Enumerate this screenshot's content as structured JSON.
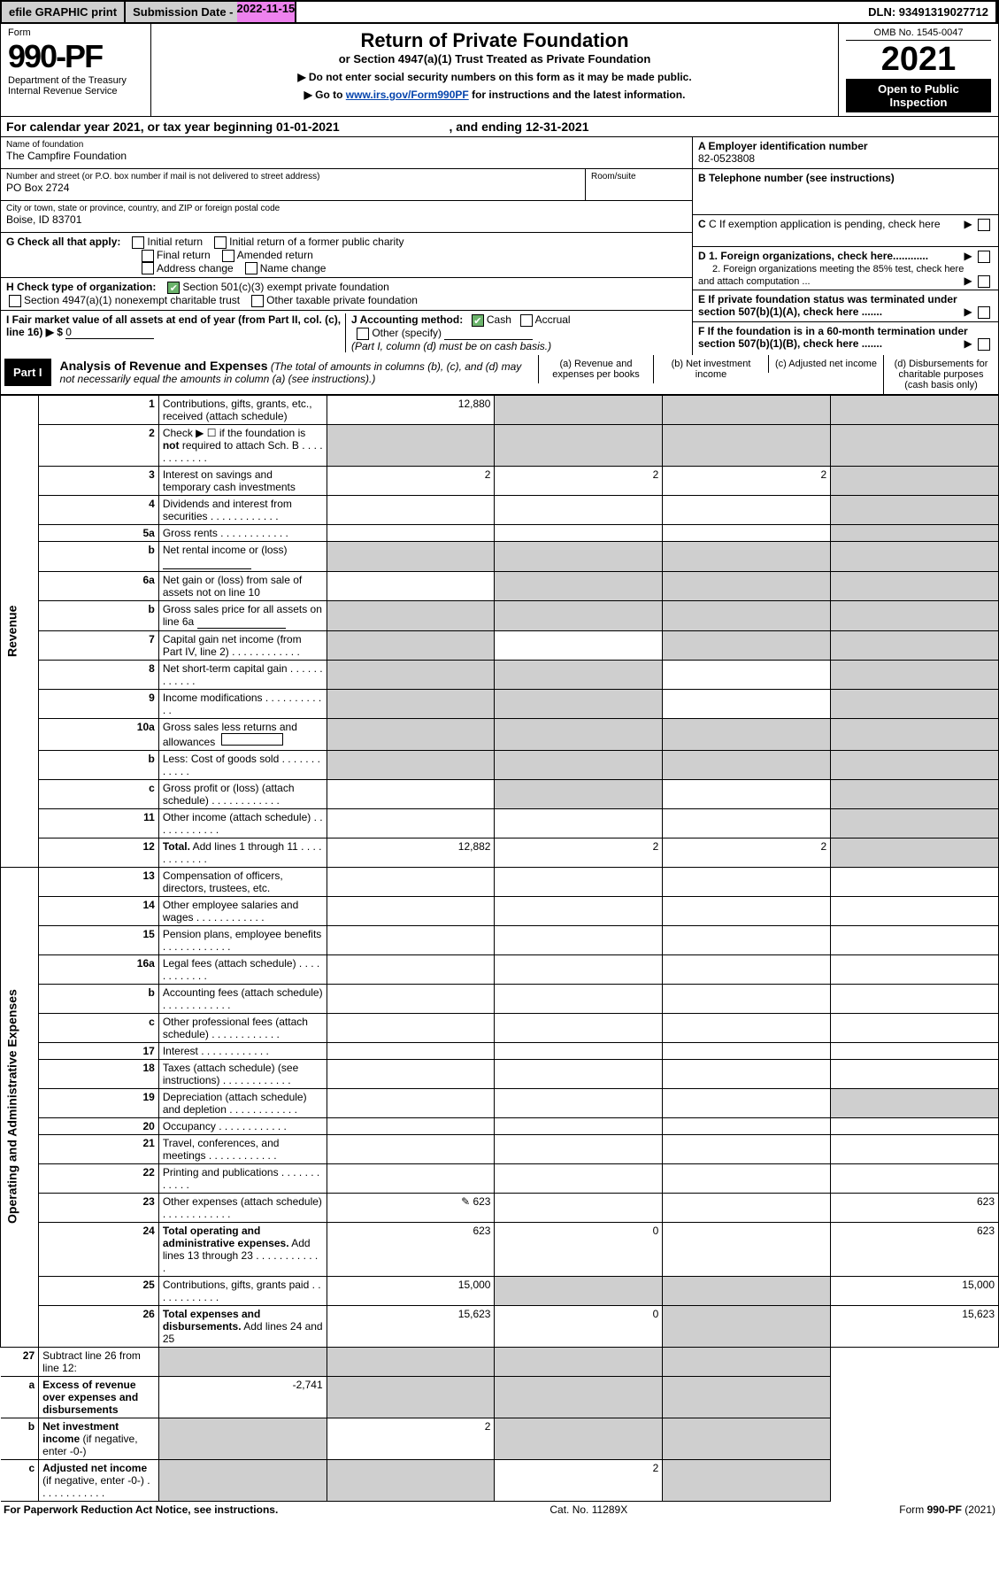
{
  "topbar": {
    "efile": "efile GRAPHIC print",
    "sub": "Submission Date - ",
    "date": "2022-11-15",
    "dln": "DLN: 93491319027712"
  },
  "header": {
    "form": "Form",
    "formno": "990-PF",
    "dept": "Department of the Treasury",
    "irs": "Internal Revenue Service",
    "title": "Return of Private Foundation",
    "subtitle": "or Section 4947(a)(1) Trust Treated as Private Foundation",
    "inst1": "▶ Do not enter social security numbers on this form as it may be made public.",
    "inst2a": "▶ Go to ",
    "inst2link": "www.irs.gov/Form990PF",
    "inst2b": " for instructions and the latest information.",
    "omb": "OMB No. 1545-0047",
    "year": "2021",
    "open": "Open to Public Inspection"
  },
  "cal": {
    "pre": "For calendar year 2021, or tax year beginning ",
    "d1": "01-01-2021",
    "mid": " , and ending ",
    "d2": "12-31-2021"
  },
  "id": {
    "nameLbl": "Name of foundation",
    "name": "The Campfire Foundation",
    "addrLbl": "Number and street (or P.O. box number if mail is not delivered to street address)",
    "addr": "PO Box 2724",
    "roomLbl": "Room/suite",
    "cityLbl": "City or town, state or province, country, and ZIP or foreign postal code",
    "city": "Boise, ID  83701",
    "aLbl": "A Employer identification number",
    "ein": "82-0523808",
    "bLbl": "B Telephone number (see instructions)",
    "cLbl": "C If exemption application is pending, check here",
    "gLbl": "G Check all that apply:",
    "g1": "Initial return",
    "g2": "Initial return of a former public charity",
    "g3": "Final return",
    "g4": "Amended return",
    "g5": "Address change",
    "g6": "Name change",
    "hLbl": "H Check type of organization:",
    "h1": "Section 501(c)(3) exempt private foundation",
    "h2": "Section 4947(a)(1) nonexempt charitable trust",
    "h3": "Other taxable private foundation",
    "iLbl": "I Fair market value of all assets at end of year (from Part II, col. (c), line 16)",
    "iArrow": "▶ $",
    "iVal": "0",
    "jLbl": "J Accounting method:",
    "j1": "Cash",
    "j2": "Accrual",
    "j3": "Other (specify)",
    "jNote": "(Part I, column (d) must be on cash basis.)",
    "d1Lbl": "D 1. Foreign organizations, check here............",
    "d2Lbl": "2. Foreign organizations meeting the 85% test, check here and attach computation ...",
    "eLbl": "E  If private foundation status was terminated under section 507(b)(1)(A), check here .......",
    "fLbl": "F  If the foundation is in a 60-month termination under section 507(b)(1)(B), check here ......."
  },
  "part1": {
    "tag": "Part I",
    "title": "Analysis of Revenue and Expenses",
    "note": "(The total of amounts in columns (b), (c), and (d) may not necessarily equal the amounts in column (a) (see instructions).)",
    "ca": "(a)  Revenue and expenses per books",
    "cb": "(b)  Net investment income",
    "cc": "(c)  Adjusted net income",
    "cd": "(d)  Disbursements for charitable purposes (cash basis only)"
  },
  "rev": "Revenue",
  "oae": "Operating and Administrative Expenses",
  "rows": [
    {
      "n": "1",
      "d": "Contributions, gifts, grants, etc., received (attach schedule)",
      "a": "12,880",
      "gb": true,
      "gc": true,
      "gd": true
    },
    {
      "n": "2",
      "d": "Check ▶ ☐ if the foundation is <b>not</b> required to attach Sch. B",
      "dots": true,
      "ga": true,
      "gb": true,
      "gc": true,
      "gd": true
    },
    {
      "n": "3",
      "d": "Interest on savings and temporary cash investments",
      "a": "2",
      "b": "2",
      "c": "2",
      "gd": true
    },
    {
      "n": "4",
      "d": "Dividends and interest from securities",
      "dots": true,
      "gd": true
    },
    {
      "n": "5a",
      "d": "Gross rents",
      "dots": true,
      "gd": true
    },
    {
      "n": "b",
      "d": "Net rental income or (loss)  <span class='u'>&nbsp;</span>",
      "ga": true,
      "gb": true,
      "gc": true,
      "gd": true
    },
    {
      "n": "6a",
      "d": "Net gain or (loss) from sale of assets not on line 10",
      "gb": true,
      "gc": true,
      "gd": true
    },
    {
      "n": "b",
      "d": "Gross sales price for all assets on line 6a <span class='u'>&nbsp;</span>",
      "ga": true,
      "gb": true,
      "gc": true,
      "gd": true
    },
    {
      "n": "7",
      "d": "Capital gain net income (from Part IV, line 2)",
      "dots": true,
      "ga": true,
      "gc": true,
      "gd": true
    },
    {
      "n": "8",
      "d": "Net short-term capital gain",
      "dots": true,
      "ga": true,
      "gb": true,
      "gd": true
    },
    {
      "n": "9",
      "d": "Income modifications",
      "dots": true,
      "ga": true,
      "gb": true,
      "gd": true
    },
    {
      "n": "10a",
      "d": "Gross sales less returns and allowances &nbsp;<span style='border:1px solid #000;display:inline-block;width:70px;height:14px'></span>",
      "ga": true,
      "gb": true,
      "gc": true,
      "gd": true
    },
    {
      "n": "b",
      "d": "Less: Cost of goods sold",
      "dots": true,
      "ga": true,
      "gb": true,
      "gc": true,
      "gd": true
    },
    {
      "n": "c",
      "d": "Gross profit or (loss) (attach schedule)",
      "dots": true,
      "gb": true,
      "gd": true
    },
    {
      "n": "11",
      "d": "Other income (attach schedule)",
      "dots": true,
      "gd": true
    },
    {
      "n": "12",
      "d": "<b>Total.</b> Add lines 1 through 11",
      "dots": true,
      "a": "12,882",
      "b": "2",
      "c": "2",
      "gd": true
    }
  ],
  "exp": [
    {
      "n": "13",
      "d": "Compensation of officers, directors, trustees, etc."
    },
    {
      "n": "14",
      "d": "Other employee salaries and wages",
      "dots": true
    },
    {
      "n": "15",
      "d": "Pension plans, employee benefits",
      "dots": true
    },
    {
      "n": "16a",
      "d": "Legal fees (attach schedule)",
      "dots": true
    },
    {
      "n": "b",
      "d": "Accounting fees (attach schedule)",
      "dots": true
    },
    {
      "n": "c",
      "d": "Other professional fees (attach schedule)",
      "dots": true
    },
    {
      "n": "17",
      "d": "Interest",
      "dots": true
    },
    {
      "n": "18",
      "d": "Taxes (attach schedule) (see instructions)",
      "dots": true
    },
    {
      "n": "19",
      "d": "Depreciation (attach schedule) and depletion",
      "dots": true,
      "gd": true
    },
    {
      "n": "20",
      "d": "Occupancy",
      "dots": true
    },
    {
      "n": "21",
      "d": "Travel, conferences, and meetings",
      "dots": true
    },
    {
      "n": "22",
      "d": "Printing and publications",
      "dots": true
    },
    {
      "n": "23",
      "d": "Other expenses (attach schedule)",
      "dots": true,
      "icon": "✎",
      "a": "623",
      "dv": "623"
    },
    {
      "n": "24",
      "d": "<b>Total operating and administrative expenses.</b> Add lines 13 through 23",
      "dots": true,
      "a": "623",
      "b": "0",
      "dv": "623"
    },
    {
      "n": "25",
      "d": "Contributions, gifts, grants paid",
      "dots": true,
      "a": "15,000",
      "gb": true,
      "gc": true,
      "dv": "15,000"
    },
    {
      "n": "26",
      "d": "<b>Total expenses and disbursements.</b> Add lines 24 and 25",
      "a": "15,623",
      "b": "0",
      "gc": true,
      "dv": "15,623"
    }
  ],
  "sub": [
    {
      "n": "27",
      "d": "Subtract line 26 from line 12:",
      "ga": true,
      "gb": true,
      "gc": true,
      "gd": true
    },
    {
      "n": "a",
      "d": "<b>Excess of revenue over expenses and disbursements</b>",
      "a": "-2,741",
      "gb": true,
      "gc": true,
      "gd": true
    },
    {
      "n": "b",
      "d": "<b>Net investment income</b> (if negative, enter -0-)",
      "ga": true,
      "b": "2",
      "gc": true,
      "gd": true
    },
    {
      "n": "c",
      "d": "<b>Adjusted net income</b> (if negative, enter -0-)",
      "dots": true,
      "ga": true,
      "gb": true,
      "c": "2",
      "gd": true
    }
  ],
  "footer": {
    "left": "For Paperwork Reduction Act Notice, see instructions.",
    "cat": "Cat. No. 11289X",
    "right": "Form 990-PF (2021)"
  }
}
